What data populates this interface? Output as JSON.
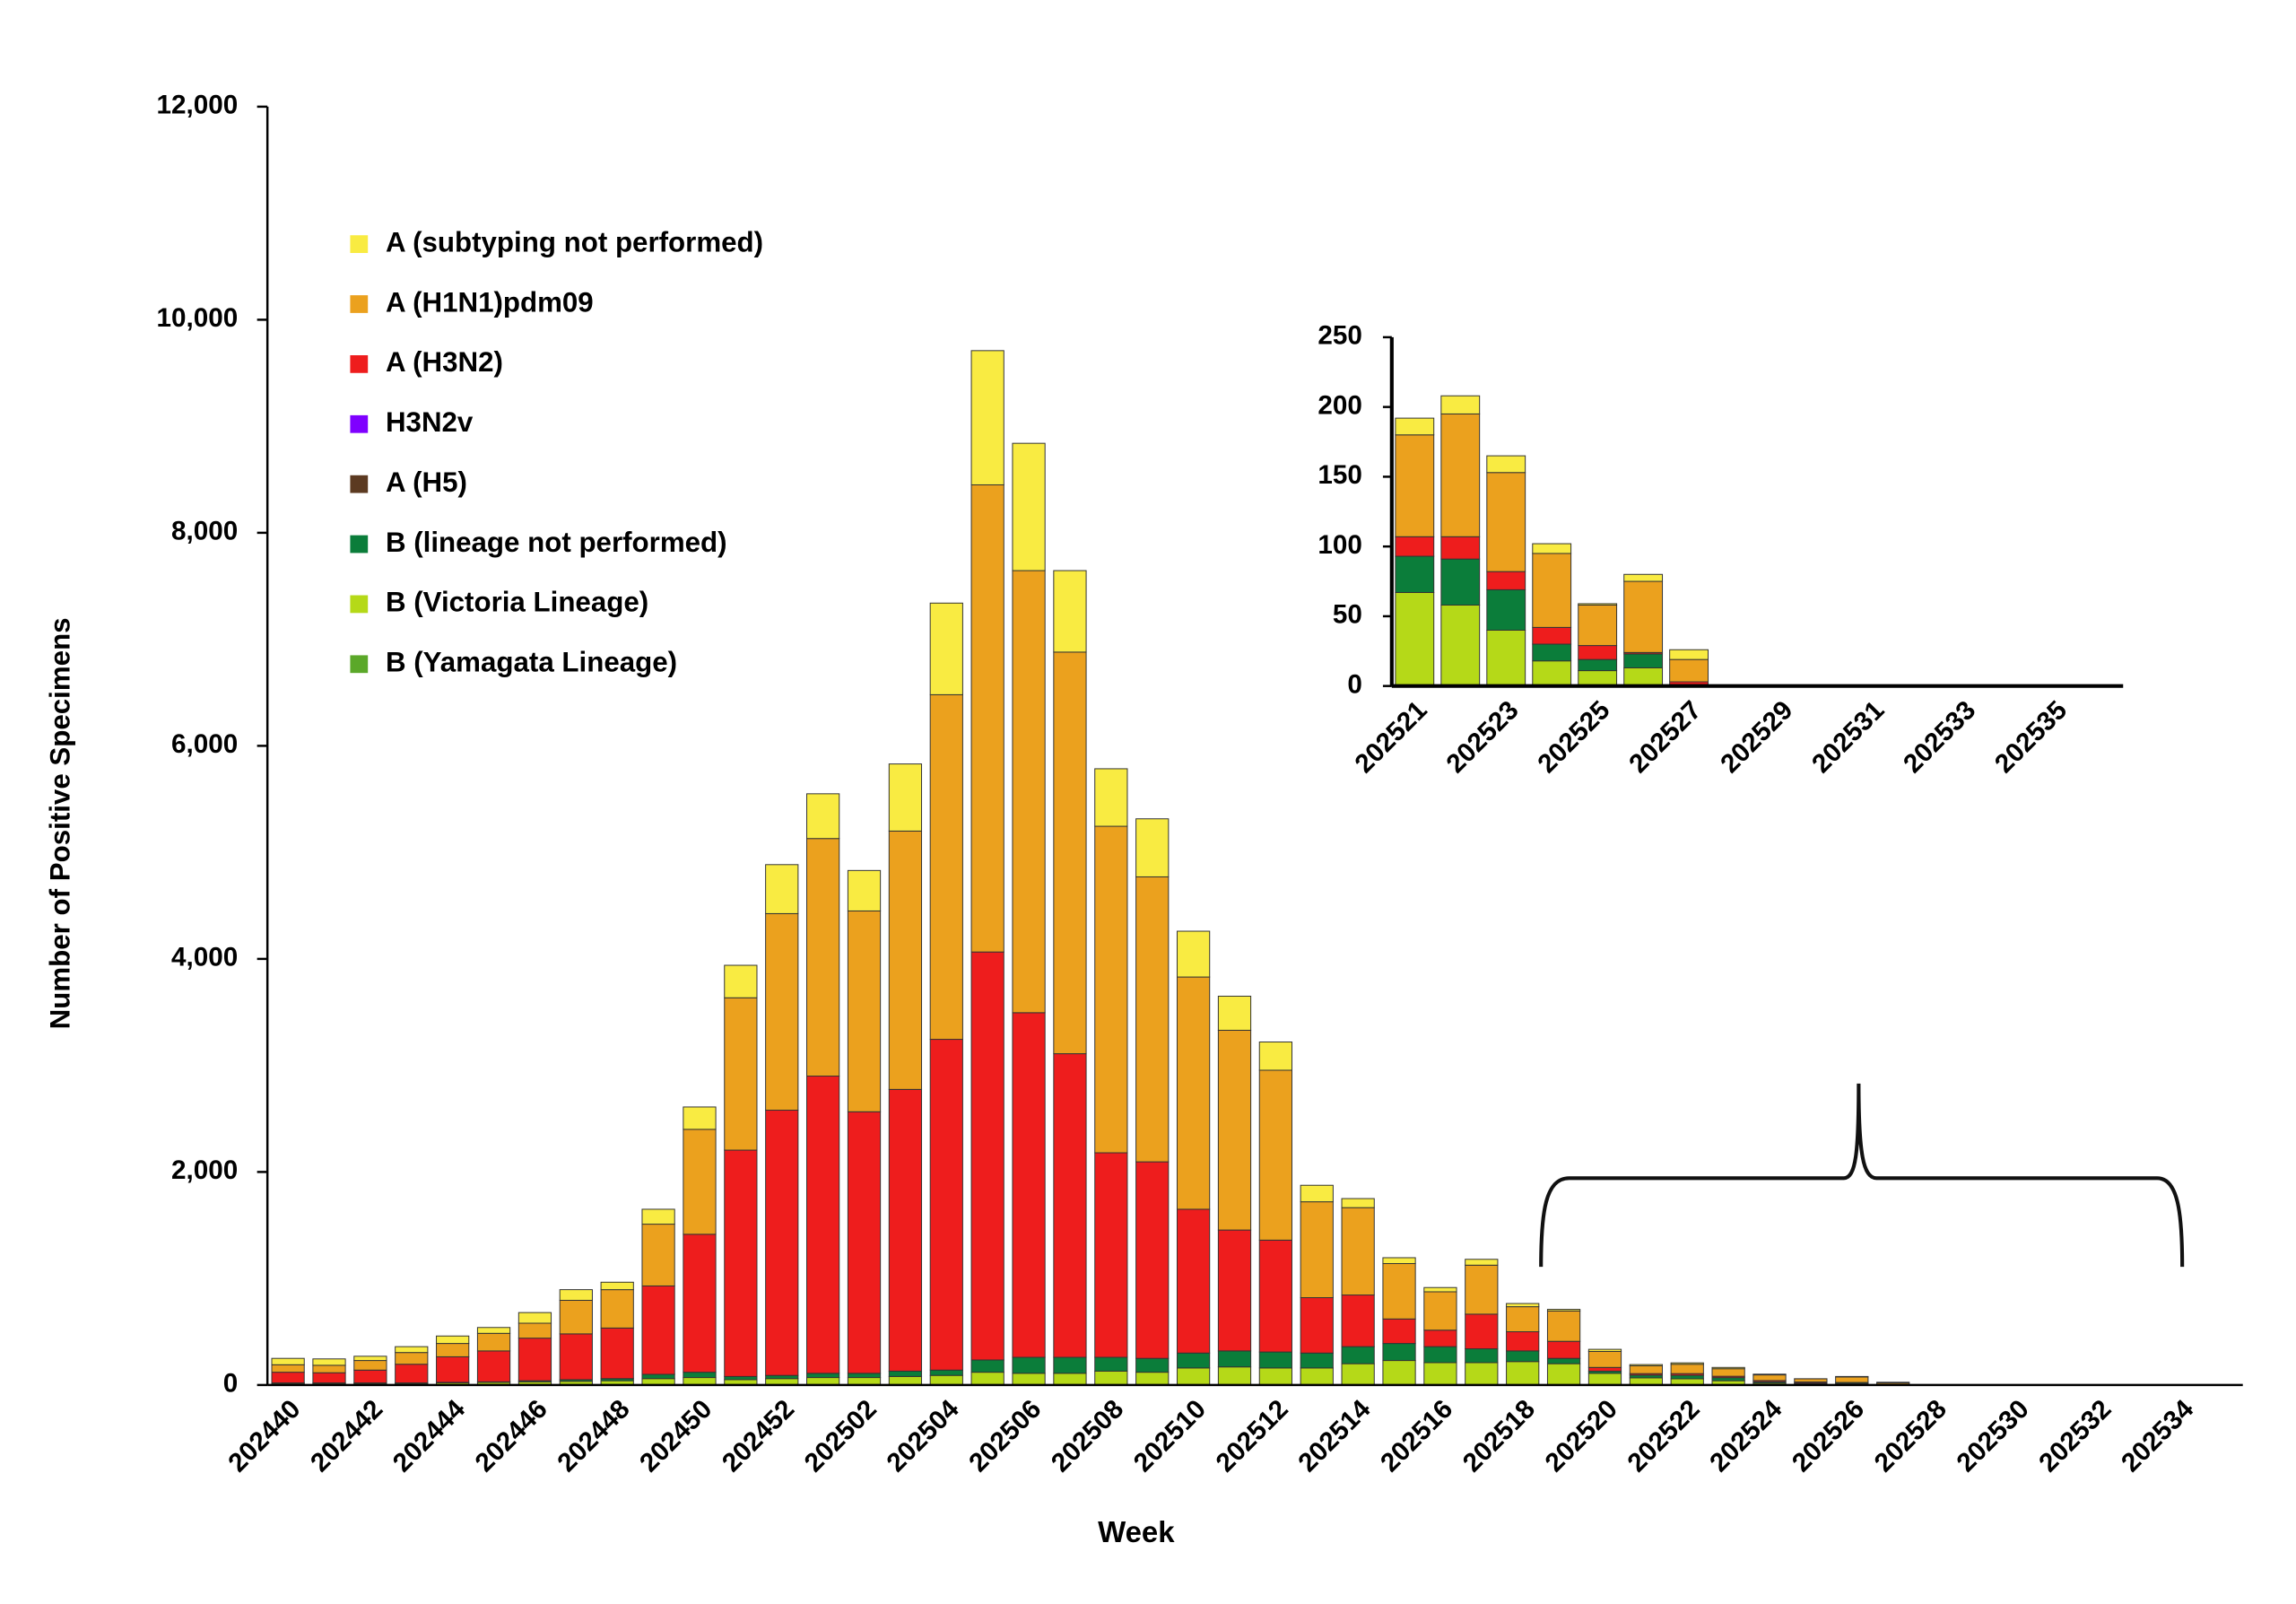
{
  "chart_data": [
    {
      "type": "bar",
      "stacked": true,
      "x_label": "Week",
      "y_label": "Number of Positive Specimens",
      "legend": "upper left",
      "categories": [
        "202440",
        null,
        "202442",
        null,
        "202444",
        null,
        "202446",
        null,
        "202448",
        null,
        "202450",
        null,
        "202452",
        null,
        "202502",
        null,
        "202504",
        null,
        "202506",
        null,
        "202508",
        null,
        "202510",
        null,
        "202512",
        null,
        "202514",
        null,
        "202516",
        null,
        "202518",
        null,
        "202520",
        null,
        "202522",
        null,
        "202524",
        null,
        "202526",
        null,
        "202528",
        null,
        "202530",
        null,
        "202532",
        null,
        "202534",
        null
      ],
      "ylim": [
        0,
        12000
      ],
      "yticks": [
        0,
        {
          "value": 2000,
          "label": "2,000"
        },
        {
          "value": 4000,
          "label": "4,000"
        },
        {
          "value": 6000,
          "label": "6,000"
        },
        {
          "value": 8000,
          "label": "8,000"
        },
        {
          "value": 10000,
          "label": "10,000"
        },
        {
          "value": 12000,
          "label": "12,000"
        }
      ],
      "series": [
        {
          "name": "A (subtyping not performed)",
          "color": "#F9EB42",
          "values": [
            60,
            60,
            40,
            55,
            70,
            55,
            100,
            100,
            70,
            140,
            210,
            305,
            460,
            420,
            380,
            630,
            860,
            1260,
            1195,
            765,
            540,
            545,
            430,
            320,
            265,
            155,
            85,
            55,
            40,
            55,
            30,
            15,
            20,
            12,
            13,
            12,
            7,
            1,
            5,
            7,
            0,
            0,
            0,
            0,
            0,
            0,
            0,
            0
          ]
        },
        {
          "name": "A (H1N1)pdm09",
          "color": "#EBA11E",
          "values": [
            70,
            70,
            90,
            110,
            125,
            165,
            140,
            315,
            360,
            580,
            985,
            1430,
            1845,
            2230,
            1885,
            2425,
            3235,
            4385,
            4150,
            3770,
            3065,
            2675,
            2180,
            1875,
            1595,
            900,
            820,
            520,
            360,
            460,
            235,
            285,
            150,
            73,
            88,
            71,
            53,
            29,
            51,
            16,
            0,
            0,
            0,
            0,
            0,
            0,
            0,
            0
          ]
        },
        {
          "name": "A (H3N2)",
          "color": "#EE1D1D",
          "values": [
            100,
            95,
            120,
            175,
            240,
            290,
            400,
            430,
            475,
            830,
            1295,
            2125,
            2490,
            2790,
            2455,
            2645,
            3105,
            3830,
            3235,
            2850,
            1920,
            1845,
            1350,
            1135,
            1050,
            520,
            485,
            230,
            155,
            325,
            180,
            160,
            35,
            14,
            16,
            13,
            12,
            10,
            1,
            2,
            0,
            0,
            0,
            0,
            0,
            0,
            0,
            0
          ]
        },
        {
          "name": "H3N2v",
          "color": "#7F00FF",
          "values": [
            0,
            0,
            0,
            0,
            0,
            0,
            0,
            0,
            0,
            0,
            0,
            0,
            0,
            0,
            0,
            0,
            0,
            0,
            0,
            0,
            0,
            0,
            0,
            0,
            0,
            0,
            0,
            0,
            0,
            0,
            0,
            0,
            0,
            0,
            0,
            0,
            0,
            0,
            0,
            0,
            0,
            0,
            0,
            0,
            0,
            0,
            0,
            0
          ]
        },
        {
          "name": "A (H5)",
          "color": "#5C3A21",
          "values": [
            0,
            0,
            0,
            0,
            0,
            0,
            0,
            0,
            0,
            0,
            0,
            0,
            0,
            0,
            0,
            0,
            0,
            0,
            0,
            0,
            0,
            0,
            0,
            0,
            0,
            0,
            0,
            0,
            0,
            0,
            0,
            0,
            0,
            0,
            0,
            0,
            0,
            0,
            0,
            0,
            0,
            0,
            0,
            0,
            0,
            0,
            0,
            0
          ]
        },
        {
          "name": "B (lineage not performed)",
          "color": "#0B7D3A",
          "values": [
            5,
            5,
            5,
            5,
            5,
            5,
            10,
            15,
            20,
            40,
            50,
            30,
            30,
            40,
            40,
            50,
            50,
            115,
            150,
            150,
            130,
            130,
            140,
            150,
            150,
            140,
            160,
            160,
            150,
            130,
            100,
            50,
            20,
            26,
            33,
            29,
            12,
            8,
            10,
            1,
            0,
            0,
            0,
            0,
            0,
            0,
            0,
            0
          ]
        },
        {
          "name": "B (Victoria Lineage)",
          "color": "#B5D918",
          "values": [
            15,
            15,
            15,
            15,
            20,
            25,
            30,
            35,
            40,
            60,
            70,
            50,
            60,
            70,
            70,
            80,
            90,
            120,
            110,
            110,
            130,
            120,
            160,
            170,
            160,
            160,
            200,
            230,
            210,
            210,
            220,
            200,
            110,
            67,
            58,
            40,
            18,
            11,
            13,
            0,
            0,
            0,
            0,
            0,
            0,
            0,
            0,
            0
          ]
        },
        {
          "name": "B (Yamagata Lineage)",
          "color": "#5BA829",
          "values": [
            0,
            0,
            0,
            0,
            0,
            0,
            0,
            0,
            0,
            0,
            0,
            0,
            0,
            0,
            0,
            0,
            0,
            0,
            0,
            0,
            0,
            0,
            0,
            0,
            0,
            0,
            0,
            0,
            0,
            0,
            0,
            0,
            0,
            0,
            0,
            0,
            0,
            0,
            0,
            0,
            0,
            0,
            0,
            0,
            0,
            0,
            0,
            0
          ]
        }
      ]
    },
    {
      "type": "bar",
      "stacked": true,
      "categories": [
        "202521",
        null,
        "202523",
        null,
        "202525",
        null,
        "202527",
        null,
        "202529",
        null,
        "202531",
        null,
        "202533",
        null,
        "202535",
        null
      ],
      "ylim": [
        0,
        250
      ],
      "yticks": [
        0,
        50,
        100,
        150,
        200,
        250
      ],
      "series": [
        {
          "color": "#F9EB42",
          "values": [
            12,
            13,
            12,
            7,
            1,
            5,
            7,
            0,
            0,
            0,
            0,
            0,
            0,
            0,
            0,
            0
          ]
        },
        {
          "color": "#EBA11E",
          "values": [
            73,
            88,
            71,
            53,
            29,
            51,
            16,
            0,
            0,
            0,
            0,
            0,
            0,
            0,
            0,
            0
          ]
        },
        {
          "color": "#EE1D1D",
          "values": [
            14,
            16,
            13,
            12,
            10,
            1,
            2,
            0,
            0,
            0,
            0,
            0,
            0,
            0,
            0,
            0
          ]
        },
        {
          "color": "#7F00FF",
          "values": [
            0,
            0,
            0,
            0,
            0,
            0,
            0,
            0,
            0,
            0,
            0,
            0,
            0,
            0,
            0,
            0
          ]
        },
        {
          "color": "#5C3A21",
          "values": [
            0,
            0,
            0,
            0,
            0,
            0,
            0,
            0,
            0,
            0,
            0,
            0,
            0,
            0,
            0,
            0
          ]
        },
        {
          "color": "#0B7D3A",
          "values": [
            26,
            33,
            29,
            12,
            8,
            10,
            1,
            0,
            0,
            0,
            0,
            0,
            0,
            0,
            0,
            0
          ]
        },
        {
          "color": "#B5D918",
          "values": [
            67,
            58,
            40,
            18,
            11,
            13,
            0,
            0,
            0,
            0,
            0,
            0,
            0,
            0,
            0,
            0
          ]
        },
        {
          "color": "#5BA829",
          "values": [
            0,
            0,
            0,
            0,
            0,
            0,
            0,
            0,
            0,
            0,
            0,
            0,
            0,
            0,
            0,
            0
          ]
        }
      ]
    }
  ]
}
